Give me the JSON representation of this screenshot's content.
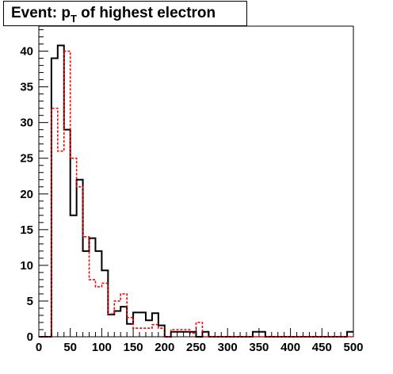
{
  "chart_data": {
    "type": "histogram",
    "title": {
      "main": "Event: p",
      "subscript": "T",
      "rest": " of highest electron"
    },
    "xlim": [
      0,
      500
    ],
    "ylim": [
      0,
      43.5
    ],
    "x_ticks": [
      0,
      50,
      100,
      150,
      200,
      250,
      300,
      350,
      400,
      450,
      500
    ],
    "y_ticks": [
      0,
      5,
      10,
      15,
      20,
      25,
      30,
      35,
      40
    ],
    "bin_width": 10,
    "bin_edges_start": 0,
    "grid": false,
    "series": [
      {
        "color": "#000000",
        "line_style": "solid",
        "values": [
          0,
          0,
          39,
          40.8,
          29,
          17,
          22,
          12,
          13.8,
          12,
          9.3,
          3.1,
          3.6,
          4.2,
          1.8,
          3.4,
          3.4,
          2.3,
          3.3,
          1.6,
          0,
          0.7,
          0.7,
          0.7,
          0.7,
          0,
          0.7,
          0,
          0,
          0,
          0,
          0,
          0,
          0,
          0.7,
          0.7,
          0,
          0,
          0,
          0,
          0,
          0,
          0,
          0,
          0,
          0,
          0,
          0,
          0,
          0.7
        ]
      },
      {
        "color": "#ff0000",
        "line_style": "dashed",
        "values": [
          0,
          0,
          32,
          26,
          40,
          25,
          21,
          14,
          8,
          7,
          7.5,
          3.2,
          5,
          6,
          2.7,
          1.2,
          1.2,
          1.2,
          1.7,
          1.2,
          0,
          1,
          1,
          1,
          0.5,
          2,
          0,
          0,
          0,
          0,
          0,
          0,
          0,
          0,
          0,
          0,
          0,
          0,
          0,
          0,
          0,
          0,
          0,
          0,
          0,
          0,
          0,
          0,
          0,
          0
        ]
      }
    ]
  }
}
